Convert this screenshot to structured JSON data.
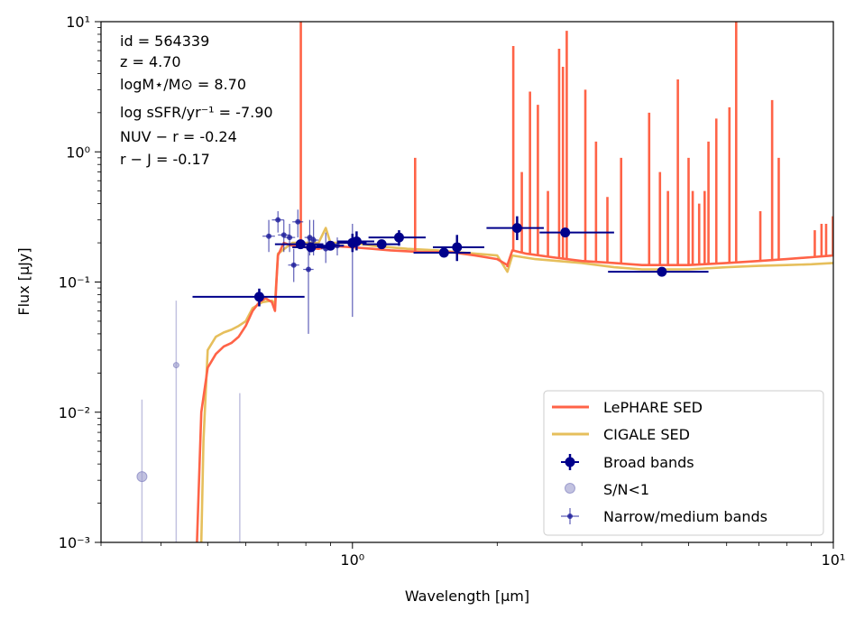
{
  "chart_data": {
    "type": "scatter",
    "title": "",
    "xlabel": "Wavelength [µm]",
    "ylabel": "Flux [µJy]",
    "xscale": "log",
    "yscale": "log",
    "xlim": [
      0.3,
      10
    ],
    "ylim": [
      0.001,
      10
    ],
    "x_major_ticks": [
      {
        "value": 1,
        "label": "10⁰"
      },
      {
        "value": 10,
        "label": "10¹"
      }
    ],
    "y_major_ticks": [
      {
        "value": 0.001,
        "label": "10⁻³"
      },
      {
        "value": 0.01,
        "label": "10⁻²"
      },
      {
        "value": 0.1,
        "label": "10⁻¹"
      },
      {
        "value": 1,
        "label": "10⁰"
      },
      {
        "value": 10,
        "label": "10¹"
      }
    ],
    "annotations": [
      "id = 564339",
      "z = 4.70",
      "logM⋆/M⊙ = 8.70",
      "log sSFR/yr⁻¹ = -7.90",
      "NUV − r = -0.24",
      "r − J = -0.17"
    ],
    "legend": {
      "position": "lower-right",
      "entries": [
        "LePHARE SED",
        "CIGALE SED",
        "Broad bands",
        "S/N<1",
        "Narrow/medium bands"
      ]
    },
    "colors": {
      "lephare": "#ff6347",
      "cigale": "#e6bf5c",
      "broad": "#00008b",
      "lowsn": "#9999cc",
      "narrow": "#1a1a9a"
    },
    "series": [
      {
        "name": "LePHARE SED",
        "kind": "line",
        "continuum": [
          [
            0.475,
            0.001
          ],
          [
            0.485,
            0.01
          ],
          [
            0.5,
            0.022
          ],
          [
            0.52,
            0.028
          ],
          [
            0.54,
            0.032
          ],
          [
            0.56,
            0.034
          ],
          [
            0.58,
            0.038
          ],
          [
            0.6,
            0.046
          ],
          [
            0.62,
            0.06
          ],
          [
            0.64,
            0.07
          ],
          [
            0.66,
            0.075
          ],
          [
            0.68,
            0.07
          ],
          [
            0.69,
            0.06
          ],
          [
            0.695,
            0.1
          ],
          [
            0.7,
            0.16
          ],
          [
            0.72,
            0.2
          ],
          [
            0.75,
            0.19
          ],
          [
            0.8,
            0.185
          ],
          [
            0.85,
            0.18
          ],
          [
            0.9,
            0.19
          ],
          [
            1.0,
            0.185
          ],
          [
            1.1,
            0.18
          ],
          [
            1.2,
            0.175
          ],
          [
            1.4,
            0.17
          ],
          [
            1.6,
            0.17
          ],
          [
            1.8,
            0.16
          ],
          [
            2.0,
            0.15
          ],
          [
            2.1,
            0.135
          ],
          [
            2.15,
            0.175
          ],
          [
            2.3,
            0.165
          ],
          [
            2.6,
            0.155
          ],
          [
            3.0,
            0.145
          ],
          [
            3.5,
            0.14
          ],
          [
            4.0,
            0.135
          ],
          [
            5.0,
            0.135
          ],
          [
            6.0,
            0.14
          ],
          [
            7.0,
            0.145
          ],
          [
            8.0,
            0.15
          ],
          [
            9.0,
            0.155
          ],
          [
            10.0,
            0.16
          ]
        ],
        "emission_lines": [
          [
            0.781,
            10.0
          ],
          [
            1.35,
            0.9
          ],
          [
            2.1,
            0.13
          ],
          [
            2.16,
            6.5
          ],
          [
            2.25,
            0.7
          ],
          [
            2.34,
            2.9
          ],
          [
            2.43,
            2.3
          ],
          [
            2.55,
            0.5
          ],
          [
            2.69,
            6.2
          ],
          [
            2.74,
            4.5
          ],
          [
            2.79,
            8.5
          ],
          [
            3.05,
            3.0
          ],
          [
            3.21,
            1.2
          ],
          [
            3.39,
            0.45
          ],
          [
            3.62,
            0.9
          ],
          [
            4.14,
            2.0
          ],
          [
            4.36,
            0.7
          ],
          [
            4.53,
            0.5
          ],
          [
            4.75,
            3.6
          ],
          [
            5.0,
            0.9
          ],
          [
            5.1,
            0.5
          ],
          [
            5.26,
            0.4
          ],
          [
            5.4,
            0.5
          ],
          [
            5.5,
            1.2
          ],
          [
            5.71,
            1.8
          ],
          [
            6.08,
            2.2
          ],
          [
            6.28,
            10.0
          ],
          [
            7.05,
            0.35
          ],
          [
            7.46,
            2.5
          ],
          [
            7.7,
            0.9
          ],
          [
            9.15,
            0.25
          ],
          [
            9.45,
            0.28
          ],
          [
            9.66,
            0.28
          ],
          [
            9.98,
            0.32
          ]
        ]
      },
      {
        "name": "CIGALE SED",
        "kind": "line",
        "continuum": [
          [
            0.485,
            0.001
          ],
          [
            0.49,
            0.006
          ],
          [
            0.5,
            0.03
          ],
          [
            0.52,
            0.038
          ],
          [
            0.54,
            0.041
          ],
          [
            0.56,
            0.043
          ],
          [
            0.58,
            0.046
          ],
          [
            0.6,
            0.05
          ],
          [
            0.62,
            0.063
          ],
          [
            0.65,
            0.07
          ],
          [
            0.68,
            0.072
          ],
          [
            0.69,
            0.068
          ],
          [
            0.7,
            0.165
          ],
          [
            0.75,
            0.2
          ],
          [
            0.8,
            0.2
          ],
          [
            0.85,
            0.2
          ],
          [
            0.88,
            0.26
          ],
          [
            0.9,
            0.2
          ],
          [
            1.0,
            0.2
          ],
          [
            1.1,
            0.19
          ],
          [
            1.3,
            0.18
          ],
          [
            1.5,
            0.175
          ],
          [
            1.8,
            0.165
          ],
          [
            2.0,
            0.16
          ],
          [
            2.1,
            0.12
          ],
          [
            2.15,
            0.16
          ],
          [
            2.4,
            0.15
          ],
          [
            3.0,
            0.14
          ],
          [
            3.5,
            0.13
          ],
          [
            4.0,
            0.125
          ],
          [
            5.0,
            0.125
          ],
          [
            6.0,
            0.13
          ],
          [
            7.0,
            0.133
          ],
          [
            8.0,
            0.135
          ],
          [
            9.0,
            0.137
          ],
          [
            10.0,
            0.14
          ]
        ]
      },
      {
        "name": "Broad bands",
        "kind": "points",
        "points": [
          {
            "x": 0.64,
            "y": 0.077,
            "xerr": [
              0.175,
              0.155
            ],
            "yerr": [
              0.012,
              0.012
            ]
          },
          {
            "x": 0.78,
            "y": 0.195,
            "xerr": [
              0.09,
              0.09
            ],
            "yerr": [
              0.012,
              0.012
            ]
          },
          {
            "x": 0.82,
            "y": 0.185,
            "xerr": [
              0.07,
              0.07
            ],
            "yerr": [
              0.012,
              0.012
            ]
          },
          {
            "x": 0.9,
            "y": 0.19,
            "xerr": [
              0.06,
              0.06
            ],
            "yerr": [
              0.012,
              0.012
            ]
          },
          {
            "x": 1.0,
            "y": 0.2,
            "xerr": [
              0.07,
              0.07
            ],
            "yerr": [
              0.03,
              0.035
            ]
          },
          {
            "x": 1.02,
            "y": 0.205,
            "xerr": [
              0.09,
              0.09
            ],
            "yerr": [
              0.03,
              0.04
            ]
          },
          {
            "x": 1.15,
            "y": 0.195,
            "xerr": [
              0.1,
              0.1
            ],
            "yerr": [
              0.015,
              0.015
            ]
          },
          {
            "x": 1.25,
            "y": 0.22,
            "xerr": [
              0.17,
              0.17
            ],
            "yerr": [
              0.03,
              0.03
            ]
          },
          {
            "x": 1.55,
            "y": 0.168,
            "xerr": [
              0.21,
              0.21
            ],
            "yerr": [
              0.012,
              0.012
            ]
          },
          {
            "x": 1.65,
            "y": 0.185,
            "xerr": [
              0.18,
              0.23
            ],
            "yerr": [
              0.04,
              0.045
            ]
          },
          {
            "x": 2.2,
            "y": 0.26,
            "xerr": [
              0.3,
              0.3
            ],
            "yerr": [
              0.05,
              0.06
            ]
          },
          {
            "x": 2.77,
            "y": 0.24,
            "xerr": [
              0.32,
              0.73
            ],
            "yerr": [
              0.015,
              0.015
            ]
          },
          {
            "x": 4.4,
            "y": 0.12,
            "xerr": [
              1.0,
              1.1
            ],
            "yerr": [
              0.008,
              0.008
            ]
          }
        ]
      },
      {
        "name": "S/N<1",
        "kind": "points",
        "points": [
          {
            "x": 0.365,
            "y": 0.0032,
            "yerr_to": [
              0.001,
              0.0125
            ],
            "marker": "large"
          },
          {
            "x": 0.43,
            "y": 0.023,
            "yerr_to": [
              0.001,
              0.072
            ],
            "marker": "small"
          },
          {
            "x": 0.583,
            "y": 0.001,
            "yerr_to": [
              0.001,
              0.014
            ],
            "marker": "none"
          }
        ]
      },
      {
        "name": "Narrow/medium bands",
        "kind": "points",
        "points": [
          {
            "x": 0.67,
            "y": 0.225,
            "xerr": [
              0.02,
              0.02
            ],
            "yerr_to": [
              0.17,
              0.3
            ]
          },
          {
            "x": 0.7,
            "y": 0.3,
            "xerr": [
              0.02,
              0.02
            ],
            "yerr_to": [
              0.24,
              0.35
            ]
          },
          {
            "x": 0.72,
            "y": 0.23,
            "xerr": [
              0.02,
              0.02
            ],
            "yerr_to": [
              0.17,
              0.3
            ]
          },
          {
            "x": 0.74,
            "y": 0.22,
            "xerr": [
              0.02,
              0.02
            ],
            "yerr_to": [
              0.17,
              0.28
            ]
          },
          {
            "x": 0.755,
            "y": 0.135,
            "xerr": [
              0.02,
              0.02
            ],
            "yerr_to": [
              0.1,
              0.18
            ]
          },
          {
            "x": 0.77,
            "y": 0.29,
            "xerr": [
              0.02,
              0.02
            ],
            "yerr_to": [
              0.22,
              0.36
            ]
          },
          {
            "x": 0.81,
            "y": 0.125,
            "xerr": [
              0.02,
              0.02
            ],
            "yerr_to": [
              0.04,
              0.22
            ]
          },
          {
            "x": 0.815,
            "y": 0.22,
            "xerr": [
              0.02,
              0.02
            ],
            "yerr_to": [
              0.16,
              0.3
            ]
          },
          {
            "x": 0.83,
            "y": 0.21,
            "xerr": [
              0.02,
              0.02
            ],
            "yerr_to": [
              0.16,
              0.3
            ]
          },
          {
            "x": 0.88,
            "y": 0.18,
            "xerr": [
              0.02,
              0.02
            ],
            "yerr_to": [
              0.14,
              0.24
            ]
          },
          {
            "x": 0.93,
            "y": 0.19,
            "xerr": [
              0.02,
              0.02
            ],
            "yerr_to": [
              0.16,
              0.22
            ]
          },
          {
            "x": 1.0,
            "y": 0.19,
            "xerr": [
              0.02,
              0.02
            ],
            "yerr_to": [
              0.054,
              0.28
            ]
          }
        ]
      }
    ]
  }
}
